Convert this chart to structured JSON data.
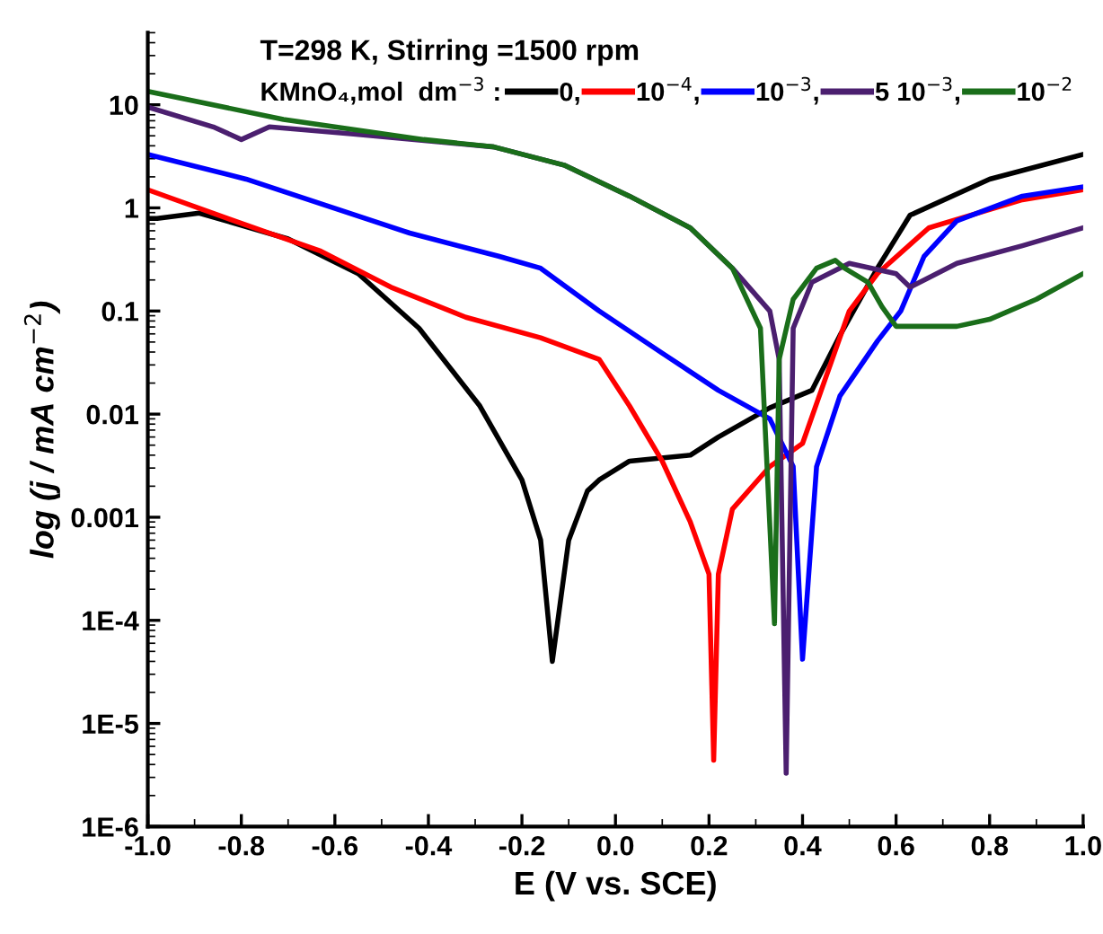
{
  "chart_data": {
    "type": "line",
    "title": "T=298 K, Stirring =1500 rpm",
    "legend_title": "KMnO₄,mol  dm$^{−3}$ :",
    "xlabel": "E (V vs. SCE)",
    "ylabel": "log (j / mA cm$^{−2}$)",
    "log": "y",
    "xlim": [
      -1.0,
      1.0
    ],
    "ylim": [
      1e-06,
      50
    ],
    "xticks": [
      {
        "value": -1.0,
        "label": "-1.0"
      },
      {
        "value": -0.8,
        "label": "-0.8"
      },
      {
        "value": -0.6,
        "label": "-0.6"
      },
      {
        "value": -0.4,
        "label": "-0.4"
      },
      {
        "value": -0.2,
        "label": "-0.2"
      },
      {
        "value": 0.0,
        "label": "0.0"
      },
      {
        "value": 0.2,
        "label": "0.2"
      },
      {
        "value": 0.4,
        "label": "0.4"
      },
      {
        "value": 0.6,
        "label": "0.6"
      },
      {
        "value": 0.8,
        "label": "0.8"
      },
      {
        "value": 1.0,
        "label": "1.0"
      }
    ],
    "yticks": [
      {
        "value": 1e-06,
        "label": "1E-6"
      },
      {
        "value": 1e-05,
        "label": "1E-5"
      },
      {
        "value": 0.0001,
        "label": "1E-4"
      },
      0.001,
      0.01,
      0.1,
      1,
      10
    ],
    "grid": false,
    "legend": "top",
    "line_style": "solid",
    "marker": "none",
    "series": [
      {
        "name": "0,",
        "color": "#000000",
        "x": [
          -1.0,
          -0.98,
          -0.89,
          -0.7,
          -0.55,
          -0.42,
          -0.29,
          -0.2,
          -0.16,
          -0.135,
          -0.1,
          -0.06,
          -0.035,
          0.03,
          0.16,
          0.22,
          0.33,
          0.42,
          0.48,
          0.56,
          0.63,
          0.8,
          1.0
        ],
        "values": [
          0.79,
          0.79,
          0.89,
          0.5,
          0.23,
          0.068,
          0.012,
          0.0023,
          0.0006,
          4e-05,
          0.0006,
          0.0018,
          0.0023,
          0.0035,
          0.004,
          0.006,
          0.0115,
          0.017,
          0.058,
          0.26,
          0.85,
          1.9,
          3.3
        ]
      },
      {
        "name": "10$^{−4}$,",
        "color": "#ff0000",
        "x": [
          -1.0,
          -0.83,
          -0.63,
          -0.48,
          -0.32,
          -0.16,
          -0.035,
          0.03,
          0.1,
          0.16,
          0.2,
          0.21,
          0.22,
          0.25,
          0.33,
          0.4,
          0.44,
          0.5,
          0.56,
          0.67,
          0.87,
          1.0
        ],
        "values": [
          1.5,
          0.79,
          0.38,
          0.17,
          0.087,
          0.055,
          0.034,
          0.012,
          0.0035,
          0.0009,
          0.00028,
          4.4e-06,
          0.00028,
          0.0012,
          0.0031,
          0.0052,
          0.017,
          0.1,
          0.23,
          0.64,
          1.2,
          1.5
        ]
      },
      {
        "name": "10$^{−3}$,",
        "color": "#0000ff",
        "x": [
          -1.0,
          -0.79,
          -0.44,
          -0.25,
          -0.16,
          -0.035,
          0.1,
          0.22,
          0.33,
          0.38,
          0.4,
          0.43,
          0.48,
          0.56,
          0.61,
          0.66,
          0.73,
          0.87,
          1.0
        ],
        "values": [
          3.3,
          1.9,
          0.57,
          0.34,
          0.26,
          0.1,
          0.039,
          0.017,
          0.009,
          0.0031,
          4.2e-05,
          0.0031,
          0.015,
          0.051,
          0.1,
          0.34,
          0.75,
          1.3,
          1.6
        ]
      },
      {
        "name": "5 10$^{−3}$,",
        "color": "#4b1f6f",
        "x": [
          -1.0,
          -0.86,
          -0.8,
          -0.74,
          -0.56,
          -0.26,
          -0.11,
          0.03,
          0.16,
          0.25,
          0.33,
          0.35,
          0.365,
          0.38,
          0.42,
          0.5,
          0.6,
          0.63,
          0.73,
          0.87,
          1.0
        ],
        "values": [
          9.5,
          6.1,
          4.6,
          6.1,
          5.2,
          3.9,
          2.6,
          1.3,
          0.64,
          0.26,
          0.1,
          0.034,
          3.3e-06,
          0.068,
          0.19,
          0.29,
          0.23,
          0.17,
          0.29,
          0.43,
          0.64
        ]
      },
      {
        "name": "10$^{−2}$",
        "color": "#1a6e1a",
        "x": [
          -1.0,
          -0.71,
          -0.41,
          -0.26,
          -0.11,
          0.03,
          0.16,
          0.25,
          0.31,
          0.34,
          0.35,
          0.38,
          0.43,
          0.47,
          0.49,
          0.54,
          0.57,
          0.6,
          0.73,
          0.8,
          0.9,
          1.0
        ],
        "values": [
          13.5,
          7.2,
          4.6,
          3.9,
          2.6,
          1.3,
          0.64,
          0.26,
          0.068,
          9.3e-05,
          0.034,
          0.13,
          0.26,
          0.31,
          0.26,
          0.19,
          0.11,
          0.071,
          0.071,
          0.083,
          0.13,
          0.23
        ]
      }
    ]
  }
}
